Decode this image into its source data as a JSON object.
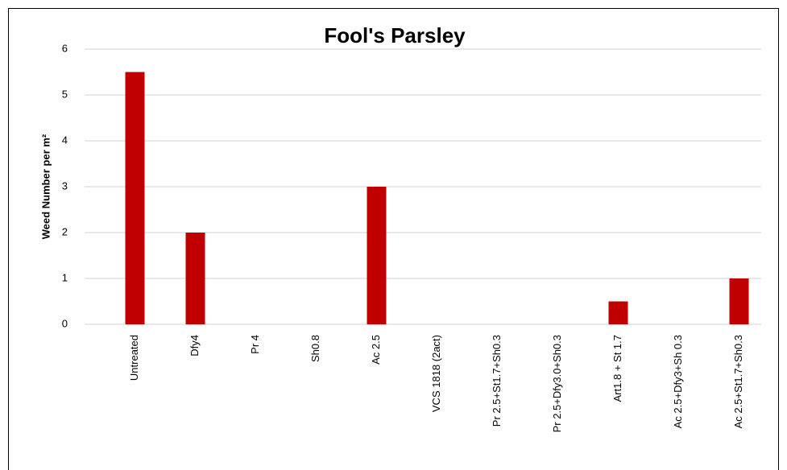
{
  "chart_data": {
    "type": "bar",
    "title": "Fool's Parsley",
    "y_label": "Weed Number per m²",
    "categories": [
      "Untreated",
      "Dfy4",
      "Pr 4",
      "Sh0.8",
      "Ac 2.5",
      "VCS 1818 (2act)",
      "Pr 2.5+St1.7+Sh0.3",
      "Pr 2.5+Dfy3.0+Sh0.3",
      "Art1.8 + St 1.7",
      "Ac 2.5+Dfy3+Sh 0.3",
      "Ac 2.5+St1.7+Sh0.3"
    ],
    "values": [
      5.5,
      2,
      0,
      0,
      3,
      0,
      0,
      0,
      0.5,
      0,
      1
    ],
    "color": "#c00000",
    "ylim": [
      0,
      6
    ],
    "yticks": [
      0,
      1,
      2,
      3,
      4,
      5,
      6
    ],
    "grid": true
  }
}
